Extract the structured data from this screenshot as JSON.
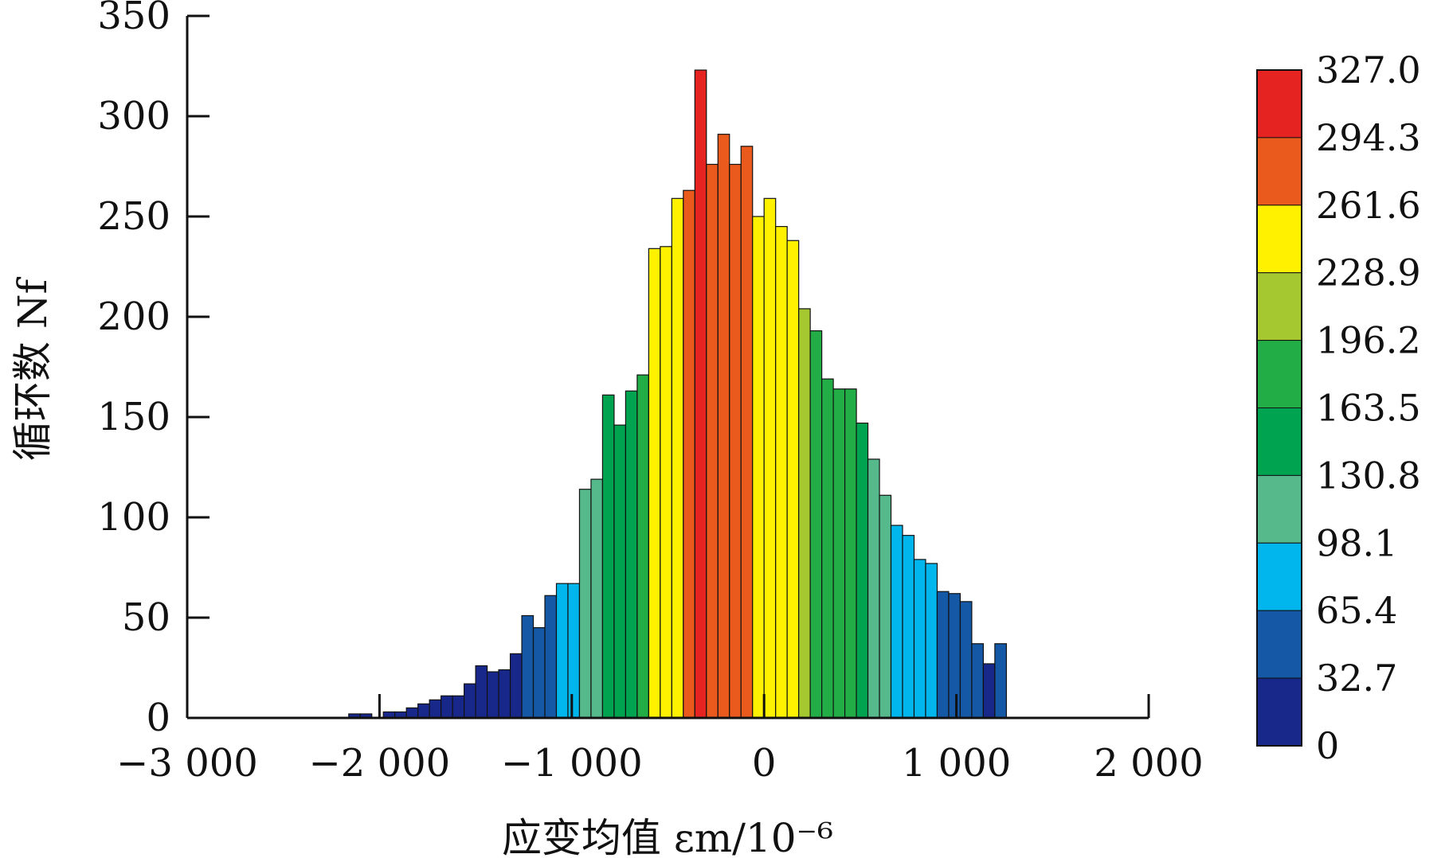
{
  "chart_data": {
    "type": "bar",
    "title": "",
    "xlabel": "应变均值 εm/10⁻⁶",
    "ylabel": "循环数 Nf",
    "xlim": [
      -3000,
      2000
    ],
    "ylim": [
      0,
      350
    ],
    "x_ticks": [
      -3000,
      -2000,
      -1000,
      0,
      1000,
      2000
    ],
    "x_tick_labels": [
      "−3 000",
      "−2 000",
      "−1 000",
      "0",
      "1 000",
      "2 000"
    ],
    "y_ticks": [
      0,
      50,
      100,
      150,
      200,
      250,
      300,
      350
    ],
    "y_tick_labels": [
      "0",
      "50",
      "100",
      "150",
      "200",
      "250",
      "300",
      "350"
    ],
    "bin_width": 60,
    "bin_centers": [
      -2130,
      -2070,
      -1950,
      -1890,
      -1830,
      -1770,
      -1710,
      -1650,
      -1590,
      -1530,
      -1470,
      -1410,
      -1350,
      -1290,
      -1230,
      -1170,
      -1110,
      -1050,
      -990,
      -930,
      -870,
      -810,
      -750,
      -690,
      -630,
      -570,
      -510,
      -450,
      -390,
      -330,
      -270,
      -210,
      -150,
      -90,
      -30,
      30,
      90,
      150,
      210,
      270,
      330,
      390,
      450,
      510,
      570,
      630,
      690,
      750,
      810,
      870,
      930,
      990,
      1050,
      1110,
      1170,
      1230
    ],
    "values": [
      2,
      2,
      3,
      3,
      5,
      7,
      9,
      11,
      11,
      17,
      26,
      23,
      24,
      32,
      51,
      45,
      61,
      67,
      67,
      114,
      119,
      161,
      146,
      163,
      171,
      234,
      235,
      259,
      263,
      323,
      276,
      291,
      276,
      285,
      250,
      259,
      245,
      238,
      204,
      193,
      169,
      164,
      164,
      147,
      129,
      111,
      96,
      91,
      79,
      77,
      63,
      62,
      58,
      37,
      27,
      37
    ],
    "legend": {
      "placement": "right",
      "type": "colorbar",
      "labels": [
        "327.0",
        "294.3",
        "261.6",
        "228.9",
        "196.2",
        "163.5",
        "130.8",
        "98.1",
        "65.4",
        "32.7",
        "0"
      ],
      "colors": [
        "#e52421",
        "#ea5a1c",
        "#fff100",
        "#a5c730",
        "#22ad47",
        "#00a450",
        "#56b98b",
        "#00b6ec",
        "#1558a6",
        "#17288a"
      ]
    }
  }
}
